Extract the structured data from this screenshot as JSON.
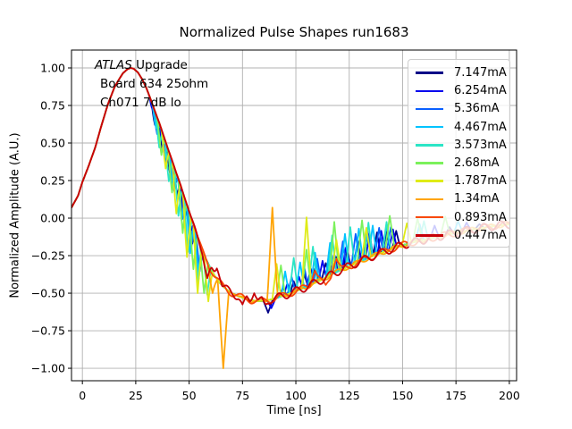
{
  "window": {
    "title": "Normalized Pulse Shapes run1683"
  },
  "annotation": {
    "line1_italic": "ATLAS",
    "line1_rest": " Upgrade",
    "line2": "Board 634 25ohm",
    "line3": "Ch071 7dB lo"
  },
  "chart_data": {
    "type": "line",
    "title": "Normalized Pulse Shapes run1683",
    "xlabel": "Time [ns]",
    "ylabel": "Normalized Amplitude (A.U.)",
    "xlim": [
      -5.1,
      203.4
    ],
    "ylim": [
      -1.083,
      1.119
    ],
    "grid": true,
    "legend_position": "upper right",
    "xticks": [
      0,
      25,
      50,
      75,
      100,
      125,
      150,
      175,
      200
    ],
    "xtick_labels": [
      "0",
      "25",
      "50",
      "75",
      "100",
      "125",
      "150",
      "175",
      "200"
    ],
    "yticks": [
      1.0,
      0.75,
      0.5,
      0.25,
      0.0,
      -0.25,
      -0.5,
      -0.75,
      -1.0
    ],
    "ytick_labels": [
      "1.00",
      "0.75",
      "0.50",
      "0.25",
      "0.00",
      "−0.25",
      "−0.50",
      "−0.75",
      "−1.00"
    ],
    "grid_color": "#b0b0b0",
    "baseline_note": "Common normalized pulse shape; series deviate via spikes/ripple.",
    "baseline": [
      [
        -5.1,
        0.07
      ],
      [
        -2,
        0.15
      ],
      [
        0,
        0.24
      ],
      [
        3,
        0.35
      ],
      [
        6,
        0.47
      ],
      [
        9,
        0.62
      ],
      [
        12,
        0.76
      ],
      [
        15,
        0.87
      ],
      [
        17,
        0.92
      ],
      [
        19,
        0.965
      ],
      [
        21,
        0.99
      ],
      [
        22.5,
        1.0
      ],
      [
        24,
        0.995
      ],
      [
        26,
        0.97
      ],
      [
        28,
        0.925
      ],
      [
        30,
        0.865
      ],
      [
        32,
        0.79
      ],
      [
        34,
        0.71
      ],
      [
        36,
        0.635
      ],
      [
        38,
        0.55
      ],
      [
        40,
        0.465
      ],
      [
        42,
        0.385
      ],
      [
        44,
        0.3
      ],
      [
        46,
        0.22
      ],
      [
        48,
        0.13
      ],
      [
        50,
        0.045
      ],
      [
        52,
        -0.04
      ],
      [
        54,
        -0.125
      ],
      [
        56,
        -0.205
      ],
      [
        58,
        -0.275
      ],
      [
        60,
        -0.335
      ],
      [
        62,
        -0.385
      ],
      [
        64,
        -0.425
      ],
      [
        66,
        -0.455
      ],
      [
        68,
        -0.48
      ],
      [
        70,
        -0.5
      ],
      [
        73,
        -0.52
      ],
      [
        76,
        -0.535
      ],
      [
        79,
        -0.547
      ],
      [
        82,
        -0.553
      ],
      [
        85,
        -0.551
      ],
      [
        88,
        -0.543
      ],
      [
        91,
        -0.532
      ],
      [
        95,
        -0.513
      ],
      [
        100,
        -0.487
      ],
      [
        105,
        -0.458
      ],
      [
        110,
        -0.425
      ],
      [
        115,
        -0.39
      ],
      [
        120,
        -0.353
      ],
      [
        125,
        -0.321
      ],
      [
        130,
        -0.29
      ],
      [
        135,
        -0.259
      ],
      [
        140,
        -0.232
      ],
      [
        145,
        -0.205
      ],
      [
        150,
        -0.18
      ],
      [
        155,
        -0.161
      ],
      [
        160,
        -0.145
      ],
      [
        165,
        -0.129
      ],
      [
        170,
        -0.113
      ],
      [
        175,
        -0.098
      ],
      [
        180,
        -0.084
      ],
      [
        185,
        -0.071
      ],
      [
        190,
        -0.059
      ],
      [
        195,
        -0.049
      ],
      [
        200,
        -0.041
      ]
    ],
    "series": [
      {
        "name": "7.147mA",
        "color": "#000087",
        "ripple": null,
        "spikes": [
          [
            34,
            0.62,
            1.6
          ],
          [
            37.5,
            0.46,
            1.6
          ],
          [
            41,
            0.3,
            1.6
          ],
          [
            44.5,
            0.15,
            1.6
          ],
          [
            48,
            -0.01,
            1.6
          ],
          [
            51.5,
            -0.17,
            1.6
          ],
          [
            87,
            -0.63,
            2.2
          ],
          [
            94,
            -0.46,
            1.6
          ],
          [
            99,
            -0.42,
            1.6
          ],
          [
            104,
            -0.375,
            1.7
          ],
          [
            109,
            -0.335,
            1.7
          ],
          [
            114,
            -0.3,
            1.8
          ],
          [
            119,
            -0.26,
            1.8
          ],
          [
            124,
            -0.215,
            1.8
          ],
          [
            129,
            -0.165,
            1.8
          ],
          [
            133.5,
            -0.115,
            1.8
          ],
          [
            138,
            -0.095,
            1.8
          ],
          [
            142.5,
            -0.09,
            1.8
          ],
          [
            147,
            -0.085,
            1.8
          ],
          [
            172,
            -0.06,
            2
          ],
          [
            186,
            -0.04,
            2
          ]
        ]
      },
      {
        "name": "6.254mA",
        "color": "#0000ee",
        "ripple": null,
        "spikes": [
          [
            33,
            0.72,
            1.6
          ],
          [
            36.5,
            0.55,
            1.6
          ],
          [
            40,
            0.38,
            1.6
          ],
          [
            43.5,
            0.22,
            1.6
          ],
          [
            47,
            0.06,
            1.6
          ],
          [
            50.5,
            -0.12,
            1.6
          ],
          [
            88.5,
            -0.6,
            2
          ],
          [
            96,
            -0.435,
            1.6
          ],
          [
            101.5,
            -0.39,
            1.7
          ],
          [
            107,
            -0.335,
            1.8
          ],
          [
            112.5,
            -0.285,
            1.8
          ],
          [
            118,
            -0.24,
            1.8
          ],
          [
            123.5,
            -0.195,
            1.8
          ],
          [
            129,
            -0.15,
            1.8
          ],
          [
            134.5,
            -0.105,
            1.8
          ],
          [
            140,
            -0.085,
            1.8
          ],
          [
            145.5,
            -0.075,
            1.8
          ],
          [
            165,
            -0.05,
            2
          ],
          [
            180,
            -0.03,
            2
          ]
        ]
      },
      {
        "name": "5.36mA",
        "color": "#0a60ff",
        "ripple": null,
        "spikes": [
          [
            35,
            0.56,
            1.6
          ],
          [
            39,
            0.37,
            1.6
          ],
          [
            43,
            0.18,
            1.6
          ],
          [
            47,
            -0.005,
            1.7
          ],
          [
            51,
            -0.2,
            1.7
          ],
          [
            55,
            -0.355,
            1.7
          ],
          [
            98,
            -0.39,
            1.8
          ],
          [
            104,
            -0.33,
            1.8
          ],
          [
            110,
            -0.27,
            1.8
          ],
          [
            116,
            -0.21,
            1.9
          ],
          [
            122,
            -0.155,
            1.9
          ],
          [
            128,
            -0.105,
            1.9
          ],
          [
            133.5,
            -0.075,
            1.9
          ],
          [
            139,
            -0.065,
            1.9
          ],
          [
            144.5,
            -0.06,
            1.9
          ]
        ]
      },
      {
        "name": "4.467mA",
        "color": "#00c3ff",
        "ripple": null,
        "spikes": [
          [
            34.5,
            0.6,
            1.6
          ],
          [
            38.5,
            0.4,
            1.6
          ],
          [
            42.5,
            0.2,
            1.7
          ],
          [
            46.5,
            -0.015,
            1.7
          ],
          [
            50.5,
            -0.235,
            1.7
          ],
          [
            54.5,
            -0.405,
            1.7
          ],
          [
            95,
            -0.355,
            1.8
          ],
          [
            102,
            -0.295,
            1.9
          ],
          [
            109,
            -0.23,
            1.9
          ],
          [
            116,
            -0.165,
            1.9
          ],
          [
            123,
            -0.105,
            1.9
          ],
          [
            129.5,
            -0.07,
            1.9
          ],
          [
            136,
            -0.05,
            1.9
          ],
          [
            142.5,
            -0.045,
            1.9
          ],
          [
            158,
            -0.04,
            2
          ],
          [
            176,
            -0.02,
            2
          ]
        ]
      },
      {
        "name": "3.573mA",
        "color": "#2be5c6",
        "ripple": null,
        "spikes": [
          [
            36,
            0.47,
            1.6
          ],
          [
            40.5,
            0.245,
            1.7
          ],
          [
            45,
            0.015,
            1.7
          ],
          [
            49.5,
            -0.225,
            1.8
          ],
          [
            54,
            -0.425,
            1.8
          ],
          [
            58.5,
            -0.51,
            1.8
          ],
          [
            99,
            -0.265,
            2
          ],
          [
            108,
            -0.19,
            2
          ],
          [
            117,
            -0.115,
            2
          ],
          [
            125.5,
            -0.06,
            2
          ],
          [
            134,
            -0.03,
            2
          ],
          [
            142.5,
            -0.025,
            2
          ],
          [
            160,
            -0.02,
            2
          ]
        ]
      },
      {
        "name": "2.68mA",
        "color": "#7bf15b",
        "ripple": null,
        "spikes": [
          [
            37,
            0.42,
            1.7
          ],
          [
            42,
            0.17,
            1.8
          ],
          [
            47,
            -0.1,
            1.8
          ],
          [
            52,
            -0.34,
            1.9
          ],
          [
            57,
            -0.5,
            1.9
          ],
          [
            93,
            -0.315,
            2
          ],
          [
            105,
            -0.21,
            2
          ],
          [
            118,
            -0.025,
            2.2
          ],
          [
            131,
            -0.015,
            2.2
          ],
          [
            144,
            0.015,
            2.2
          ],
          [
            157,
            0.0,
            2.2
          ],
          [
            170,
            0.01,
            2.2
          ]
        ]
      },
      {
        "name": "1.787mA",
        "color": "#dfeb16",
        "ripple": null,
        "spikes": [
          [
            39,
            0.33,
            1.7
          ],
          [
            44,
            0.03,
            1.8
          ],
          [
            49,
            -0.26,
            1.9
          ],
          [
            54,
            -0.5,
            2
          ],
          [
            59,
            -0.555,
            2
          ],
          [
            91,
            -0.305,
            2
          ],
          [
            105,
            0.005,
            2.2
          ],
          [
            119,
            -0.145,
            2.2
          ],
          [
            133,
            -0.065,
            2.2
          ],
          [
            152,
            -0.035,
            2.2
          ]
        ]
      },
      {
        "name": "1.34mA",
        "color": "#ffa405",
        "ripple": {
          "start": 72,
          "end": 200,
          "amp": 0.015,
          "period": 9
        },
        "spikes": [
          [
            61,
            -0.5,
            2.2
          ],
          [
            66,
            -1.0,
            2.6
          ],
          [
            89,
            0.07,
            2.4
          ]
        ]
      },
      {
        "name": "0.893mA",
        "color": "#f8490b",
        "ripple": {
          "start": 53,
          "end": 200,
          "amp": 0.022,
          "period": 9.5
        },
        "spikes": [
          [
            109,
            -0.35,
            2.6
          ],
          [
            114,
            -0.445,
            2.6
          ],
          [
            119,
            -0.27,
            2.6
          ]
        ]
      },
      {
        "name": "0.447mA",
        "color": "#c70008",
        "ripple": {
          "start": 50,
          "end": 200,
          "amp": 0.027,
          "period": 8
        },
        "spikes": [
          [
            58.5,
            -0.4,
            2.2
          ],
          [
            63,
            -0.335,
            2.6
          ],
          [
            75,
            -0.575,
            2
          ],
          [
            80.5,
            -0.5,
            2
          ],
          [
            86,
            -0.575,
            2
          ]
        ]
      }
    ]
  }
}
